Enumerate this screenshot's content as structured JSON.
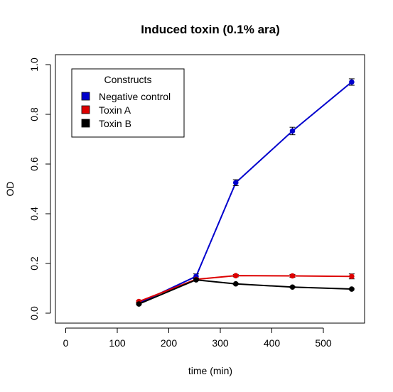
{
  "chart_data": {
    "type": "line",
    "title": "Induced toxin (0.1% ara)",
    "xlabel": "time (min)",
    "ylabel": "OD",
    "xlim": [
      -20,
      580
    ],
    "ylim": [
      -0.04,
      1.04
    ],
    "x_ticks": [
      0,
      100,
      200,
      300,
      400,
      500
    ],
    "x_tick_labels": [
      "0",
      "100",
      "200",
      "300",
      "400",
      "500"
    ],
    "y_ticks": [
      0.0,
      0.2,
      0.4,
      0.6,
      0.8,
      1.0
    ],
    "y_tick_labels": [
      "0.0",
      "0.2",
      "0.4",
      "0.6",
      "0.8",
      "1.0"
    ],
    "grid": false,
    "legend": {
      "title": "Constructs",
      "placement": "top-left"
    },
    "series": [
      {
        "name": "Negative control",
        "color": "#0000cd",
        "x": [
          142,
          253,
          330,
          440,
          555
        ],
        "y": [
          0.04,
          0.148,
          0.525,
          0.733,
          0.93
        ],
        "err": [
          0.005,
          0.01,
          0.012,
          0.015,
          0.013
        ]
      },
      {
        "name": "Toxin A",
        "color": "#dd0000",
        "x": [
          142,
          253,
          330,
          440,
          555
        ],
        "y": [
          0.047,
          0.136,
          0.151,
          0.15,
          0.148
        ],
        "err": [
          0.004,
          0.005,
          0.005,
          0.006,
          0.01
        ]
      },
      {
        "name": "Toxin B",
        "color": "#000000",
        "x": [
          142,
          253,
          330,
          440,
          555
        ],
        "y": [
          0.037,
          0.134,
          0.118,
          0.105,
          0.097
        ],
        "err": [
          0.003,
          0.004,
          0.003,
          0.003,
          0.003
        ]
      }
    ]
  }
}
